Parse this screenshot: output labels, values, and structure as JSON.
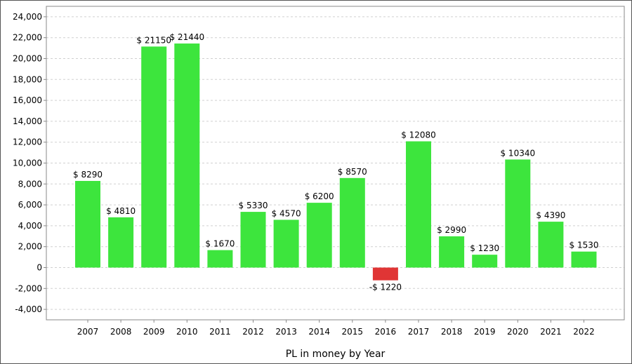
{
  "chart_data": {
    "type": "bar",
    "title": "",
    "xlabel": "PL in money by Year",
    "ylabel": "",
    "ylim": [
      -5000,
      25000
    ],
    "yticks": [
      -4000,
      -2000,
      0,
      2000,
      4000,
      6000,
      8000,
      10000,
      12000,
      14000,
      16000,
      18000,
      20000,
      22000,
      24000
    ],
    "ytick_labels": [
      "-4,000",
      "-2,000",
      "0",
      "2,000",
      "4,000",
      "6,000",
      "8,000",
      "10,000",
      "12,000",
      "14,000",
      "16,000",
      "18,000",
      "20,000",
      "22,000",
      "24,000"
    ],
    "grid": true,
    "categories": [
      "2007",
      "2008",
      "2009",
      "2010",
      "2011",
      "2012",
      "2013",
      "2014",
      "2015",
      "2016",
      "2017",
      "2018",
      "2019",
      "2020",
      "2021",
      "2022"
    ],
    "values": [
      8290,
      4810,
      21150,
      21440,
      1670,
      5330,
      4570,
      6200,
      8570,
      -1220,
      12080,
      2990,
      1230,
      10340,
      4390,
      1530
    ],
    "data_labels": [
      "$ 8290",
      "$ 4810",
      "$ 21150",
      "$ 21440",
      "$ 1670",
      "$ 5330",
      "$ 4570",
      "$ 6200",
      "$ 8570",
      "-$ 1220",
      "$ 12080",
      "$ 2990",
      "$ 1230",
      "$ 10340",
      "$ 4390",
      "$ 1530"
    ],
    "colors": {
      "positive": "#3de53d",
      "negative": "#e03535",
      "grid": "#d0d0d0",
      "axis": "#888888"
    }
  }
}
